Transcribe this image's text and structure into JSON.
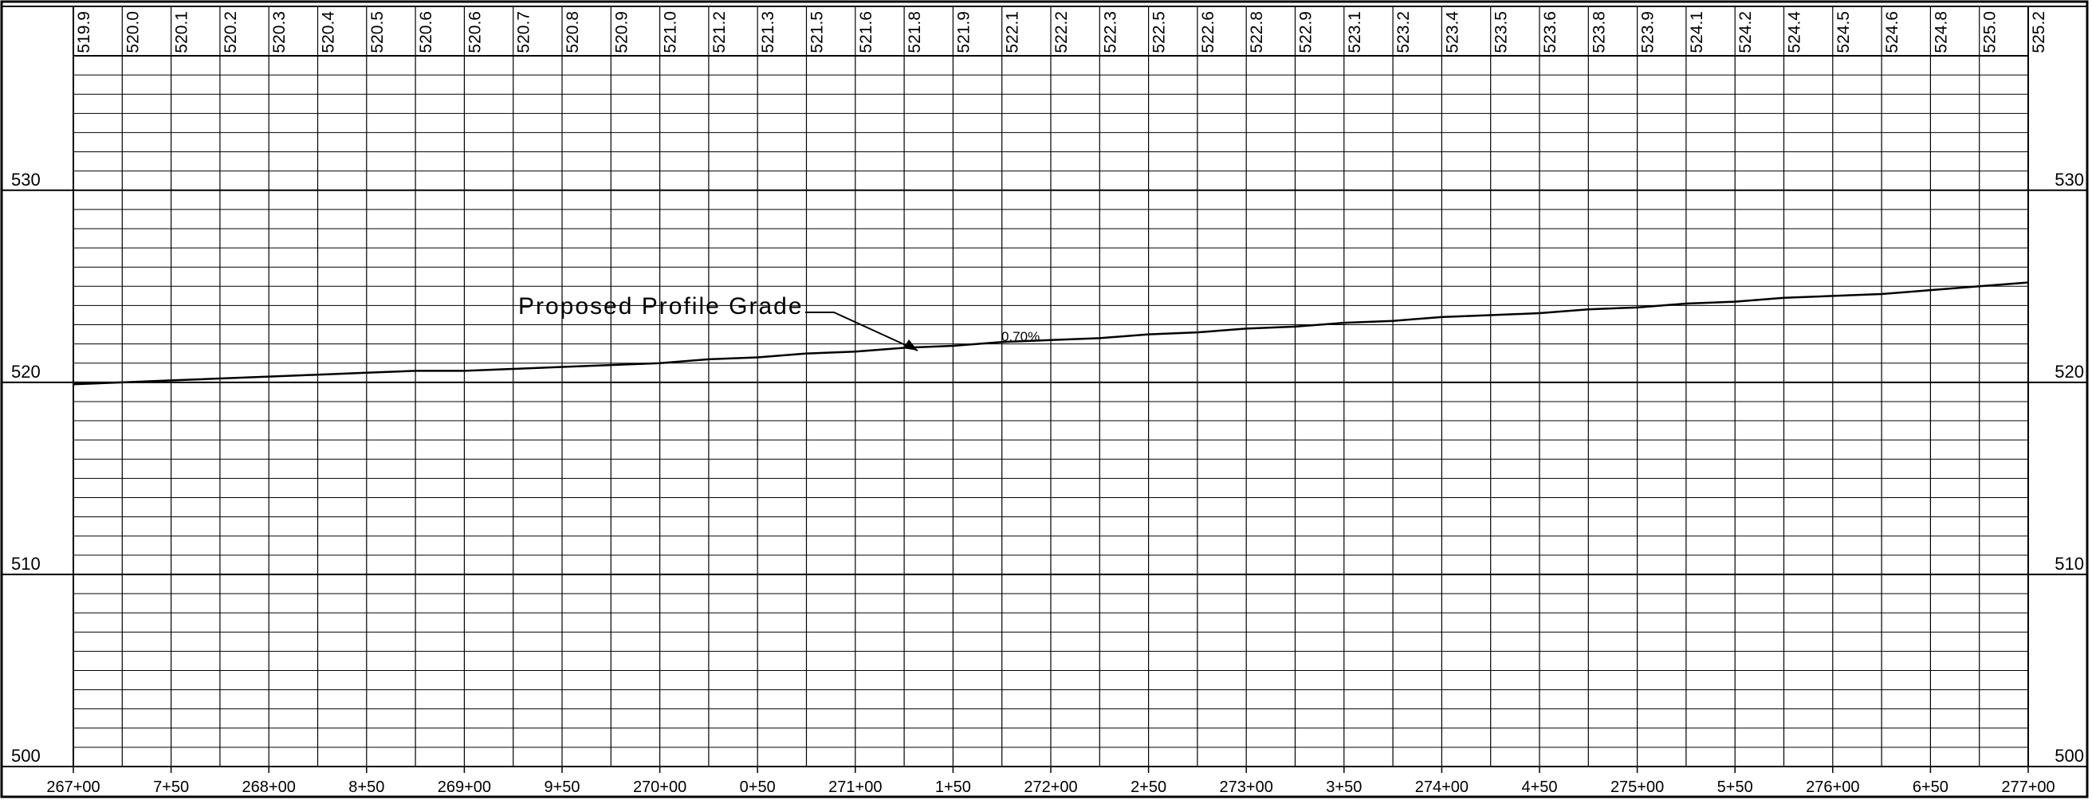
{
  "chart_data": {
    "type": "line",
    "x": [
      26700,
      26725,
      26750,
      26775,
      26800,
      26825,
      26850,
      26875,
      26900,
      26925,
      26950,
      26975,
      27000,
      27025,
      27050,
      27075,
      27100,
      27125,
      27150,
      27175,
      27200,
      27225,
      27250,
      27275,
      27300,
      27325,
      27350,
      27375,
      27400,
      27425,
      27450,
      27475,
      27500,
      27525,
      27550,
      27575,
      27600,
      27625,
      27650,
      27675,
      27700
    ],
    "series": [
      {
        "name": "Proposed Profile Grade",
        "color": "#000000",
        "values": [
          519.9,
          520.0,
          520.1,
          520.2,
          520.3,
          520.4,
          520.5,
          520.6,
          520.6,
          520.7,
          520.8,
          520.9,
          521.0,
          521.2,
          521.3,
          521.5,
          521.6,
          521.8,
          521.9,
          522.1,
          522.2,
          522.3,
          522.5,
          522.6,
          522.8,
          522.9,
          523.1,
          523.2,
          523.4,
          523.5,
          523.6,
          523.8,
          523.9,
          524.1,
          524.2,
          524.4,
          524.5,
          524.6,
          524.8,
          525.0,
          525.2
        ],
        "value_labels": [
          "519.9",
          "520.0",
          "520.1",
          "520.2",
          "520.3",
          "520.4",
          "520.5",
          "520.6",
          "520.6",
          "520.7",
          "520.8",
          "520.9",
          "521.0",
          "521.2",
          "521.3",
          "521.5",
          "521.6",
          "521.8",
          "521.9",
          "522.1",
          "522.2",
          "522.3",
          "522.5",
          "522.6",
          "522.8",
          "522.9",
          "523.1",
          "523.2",
          "523.4",
          "523.5",
          "523.6",
          "523.8",
          "523.9",
          "524.1",
          "524.2",
          "524.4",
          "524.5",
          "524.6",
          "524.8",
          "525.0",
          "525.2"
        ]
      }
    ],
    "xlim": [
      26700,
      27700
    ],
    "xticks": [
      {
        "value": 26700,
        "label": "267+00"
      },
      {
        "value": 26750,
        "label": "7+50"
      },
      {
        "value": 26800,
        "label": "268+00"
      },
      {
        "value": 26850,
        "label": "8+50"
      },
      {
        "value": 26900,
        "label": "269+00"
      },
      {
        "value": 26950,
        "label": "9+50"
      },
      {
        "value": 27000,
        "label": "270+00"
      },
      {
        "value": 27050,
        "label": "0+50"
      },
      {
        "value": 27100,
        "label": "271+00"
      },
      {
        "value": 27150,
        "label": "1+50"
      },
      {
        "value": 27200,
        "label": "272+00"
      },
      {
        "value": 27250,
        "label": "2+50"
      },
      {
        "value": 27300,
        "label": "273+00"
      },
      {
        "value": 27350,
        "label": "3+50"
      },
      {
        "value": 27400,
        "label": "274+00"
      },
      {
        "value": 27450,
        "label": "4+50"
      },
      {
        "value": 27500,
        "label": "275+00"
      },
      {
        "value": 27550,
        "label": "5+50"
      },
      {
        "value": 27600,
        "label": "276+00"
      },
      {
        "value": 27650,
        "label": "6+50"
      },
      {
        "value": 27700,
        "label": "277+00"
      }
    ],
    "ylim": [
      500,
      537
    ],
    "yticks": [
      500,
      510,
      520,
      530
    ],
    "y_minor_ticks": [
      501,
      502,
      503,
      504,
      505,
      506,
      507,
      508,
      509,
      511,
      512,
      513,
      514,
      515,
      516,
      517,
      518,
      519,
      521,
      522,
      523,
      524,
      525,
      526,
      527,
      528,
      529,
      531,
      532,
      533,
      534,
      535,
      536
    ],
    "grid": true,
    "annotations": [
      {
        "text": "Proposed Profile Grade"
      },
      {
        "text": "0.70%"
      }
    ]
  }
}
